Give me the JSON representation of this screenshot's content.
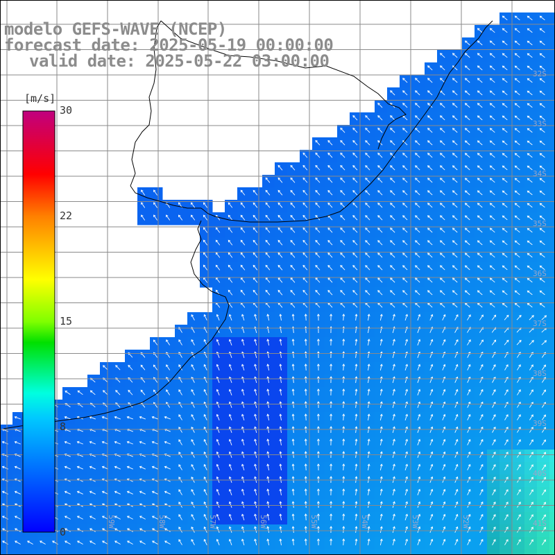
{
  "titles": {
    "model": "modelo GEFS-WAVE (NCEP)",
    "forecast": "forecast date: 2025-05-19 00:00:00",
    "valid": "valid date: 2025-05-22 03:00:00"
  },
  "colorbar": {
    "unit": "[m/s]",
    "ticks": [
      "30",
      "22",
      "15",
      "8",
      "0"
    ],
    "stops": [
      "#0000ff",
      "#00a0ff",
      "#00ffff",
      "#00ff00",
      "#ffff00",
      "#ff8000",
      "#ff0000",
      "#c0007f"
    ]
  },
  "axis_labels": {
    "longitudes": [
      "59W",
      "58W",
      "57W",
      "56W",
      "55W",
      "54W",
      "53W",
      "52W"
    ],
    "latitudes": [
      "32S",
      "33S",
      "34S",
      "35S",
      "36S",
      "37S",
      "38S",
      "39S",
      "40S",
      "41S"
    ]
  },
  "colors": {
    "land": "#ffffff",
    "coast": "#000000",
    "grid": "#8a8a8a",
    "arrow": "#ffffff",
    "title": "#8c8c8c"
  }
}
